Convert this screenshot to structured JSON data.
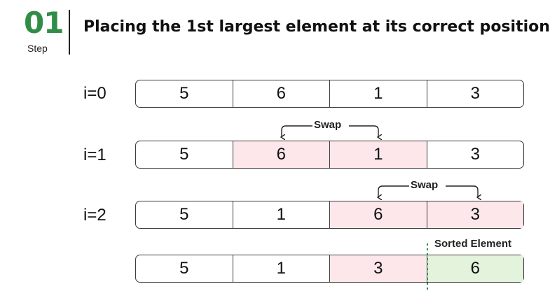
{
  "step": {
    "number": "01",
    "label": "Step"
  },
  "title": "Placing the 1st largest element at its correct position",
  "rows": [
    {
      "label": "i=0",
      "values": [
        "5",
        "6",
        "1",
        "3"
      ],
      "highlight": []
    },
    {
      "label": "i=1",
      "values": [
        "5",
        "6",
        "1",
        "3"
      ],
      "highlight": [
        1,
        2
      ]
    },
    {
      "label": "i=2",
      "values": [
        "5",
        "1",
        "6",
        "3"
      ],
      "highlight": [
        2,
        3
      ]
    },
    {
      "label": "",
      "values": [
        "5",
        "1",
        "3",
        "6"
      ],
      "highlight": [
        2
      ],
      "sorted": [
        3
      ]
    }
  ],
  "swap_label": "Swap",
  "sorted_label": "Sorted Element",
  "colors": {
    "accent": "#2f8d46",
    "swap_fill": "#fde7ea",
    "sorted_fill": "#e4f3dc"
  }
}
